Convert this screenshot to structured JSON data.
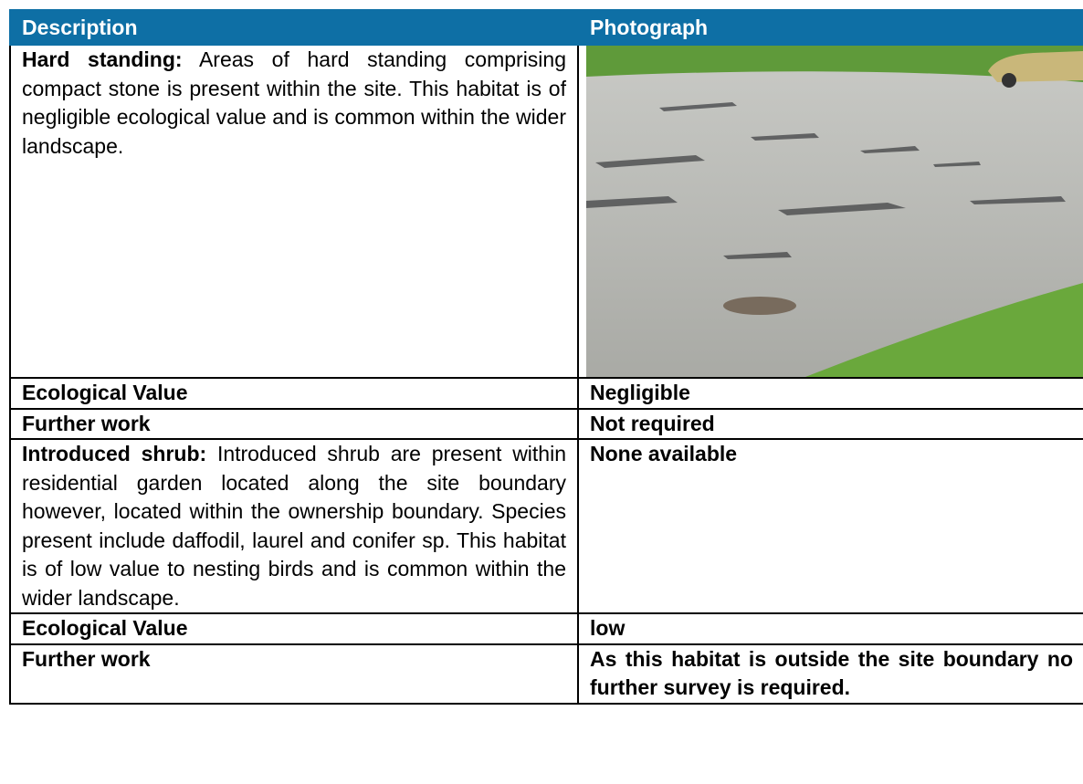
{
  "table": {
    "header": [
      "Description",
      "Photograph"
    ],
    "rows": [
      [
        {
          "lead": "Hard standing:",
          "text": "Areas of hard standing comprising compact stone is present within the site. This habitat is of negligible ecological value and is common within the wider landscape."
        }
      ],
      [
        "Ecological Value",
        "Negligible"
      ],
      [
        "Further work",
        "Not required"
      ],
      [
        {
          "lead": "Introduced shrub:",
          "text": "Introduced shrub are present within residential garden located along the site boundary however, located within the ownership boundary. Species present include daffodil, laurel and conifer sp. This habitat is of low value to nesting birds and is common within the wider landscape."
        },
        "None available"
      ],
      [
        "Ecological Value",
        "low"
      ],
      [
        "Further work",
        "As this habitat is outside the site boundary no further survey is required."
      ]
    ]
  }
}
